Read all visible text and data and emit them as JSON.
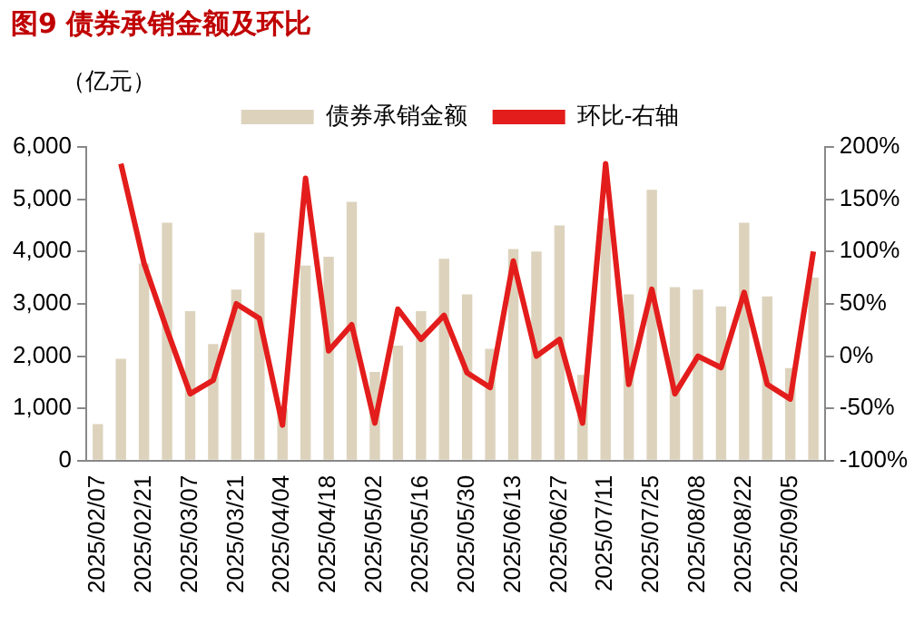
{
  "chart_data": {
    "type": "bar",
    "title": "图9  债券承销金额及环比",
    "ylabel": "（亿元）",
    "categories": [
      "2025/02/07",
      null,
      "2025/02/21",
      null,
      "2025/03/07",
      null,
      "2025/03/21",
      null,
      "2025/04/04",
      null,
      "2025/04/18",
      null,
      "2025/05/02",
      null,
      "2025/05/16",
      null,
      "2025/05/30",
      null,
      "2025/06/13",
      null,
      "2025/06/27",
      null,
      "2025/07/11",
      null,
      "2025/07/25",
      null,
      "2025/08/08",
      null,
      "2025/08/22",
      null,
      "2025/09/05",
      null
    ],
    "series": [
      {
        "name": "债券承销金额",
        "color": "#ddd3bd",
        "values": [
          700,
          1950,
          3770,
          4550,
          2860,
          2230,
          3270,
          4360,
          1000,
          3730,
          3900,
          4950,
          1700,
          2200,
          2860,
          3860,
          3180,
          2140,
          4050,
          4000,
          4500,
          1640,
          4640,
          3180,
          5180,
          3320,
          3270,
          2950,
          4550,
          3140,
          1770,
          3500
        ]
      },
      {
        "name": "环比-右轴",
        "type": "line",
        "axis": "y2",
        "color": "#e31d1c",
        "values": [
          null,
          184,
          89,
          25,
          -36,
          -23,
          50,
          36,
          -66,
          170,
          5,
          30,
          -64,
          45,
          16,
          39,
          -16,
          -30,
          91,
          0,
          16,
          -64,
          184,
          -27,
          64,
          -36,
          0,
          -11,
          61,
          -27,
          -41,
          100
        ]
      }
    ],
    "ylim": [
      0,
      6000
    ],
    "yticks": [
      0,
      {
        "value": 1000,
        "label": "1,000"
      },
      {
        "value": 2000,
        "label": "2,000"
      },
      {
        "value": 3000,
        "label": "3,000"
      },
      {
        "value": 4000,
        "label": "4,000"
      },
      {
        "value": 5000,
        "label": "5,000"
      },
      {
        "value": 6000,
        "label": "6,000"
      }
    ],
    "y2lim": [
      -100,
      200
    ],
    "y2ticks": [
      {
        "value": -100,
        "label": "-100%"
      },
      {
        "value": -50,
        "label": "-50%"
      },
      {
        "value": 0,
        "label": "0%"
      },
      {
        "value": 50,
        "label": "50%"
      },
      {
        "value": 100,
        "label": "100%"
      },
      {
        "value": 150,
        "label": "150%"
      },
      {
        "value": 200,
        "label": "200%"
      }
    ],
    "grid": false,
    "legend": "top",
    "marker": "none",
    "line_style": "solid"
  }
}
